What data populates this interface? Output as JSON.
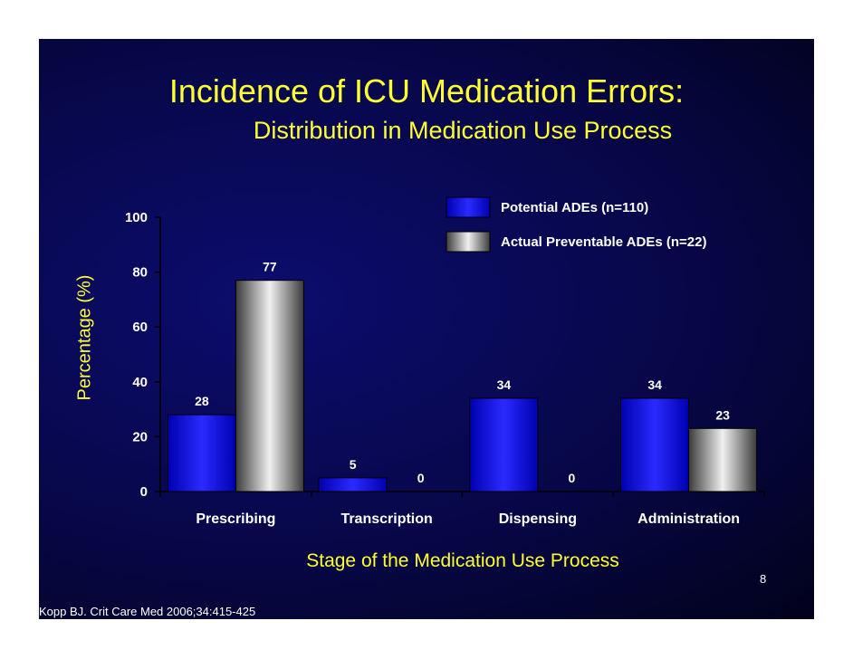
{
  "slide": {
    "title": "Incidence of ICU Medication Errors:",
    "subtitle": "Distribution in Medication Use Process",
    "page_number": "8",
    "citation": "Kopp BJ. Crit Care Med 2006;34:415-425"
  },
  "chart_data": {
    "type": "bar",
    "title": "",
    "xlabel": "Stage of the Medication Use Process",
    "ylabel": "Percentage (%)",
    "ylim": [
      0,
      100
    ],
    "yticks": [
      0,
      20,
      40,
      60,
      80,
      100
    ],
    "categories": [
      "Prescribing",
      "Transcription",
      "Dispensing",
      "Administration"
    ],
    "series": [
      {
        "name": "Potential ADEs (n=110)",
        "values": [
          28,
          5,
          34,
          34
        ],
        "color": "#1a1aff"
      },
      {
        "name": "Actual Preventable ADEs (n=22)",
        "values": [
          77,
          0,
          0,
          23
        ],
        "color": "#a0a0a0"
      }
    ],
    "legend_position": "top-right",
    "grid": false
  }
}
